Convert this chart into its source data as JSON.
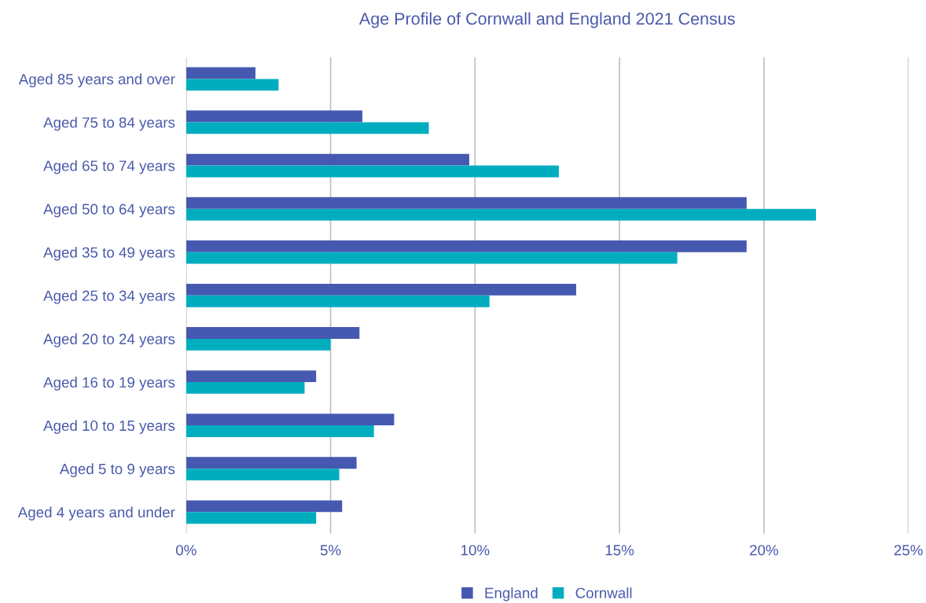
{
  "chart_data": {
    "type": "bar",
    "orientation": "horizontal",
    "title": "Age Profile of Cornwall and England 2021 Census",
    "categories": [
      "Aged 85 years and over",
      "Aged 75 to 84 years",
      "Aged 65 to 74 years",
      "Aged 50 to 64 years",
      "Aged 35 to 49 years",
      "Aged 25 to 34 years",
      "Aged 20 to 24 years",
      "Aged 16 to 19 years",
      "Aged 10 to 15 years",
      "Aged 5 to 9 years",
      "Aged 4 years and under"
    ],
    "series": [
      {
        "name": "England",
        "color": "#4659b0",
        "values": [
          2.4,
          6.1,
          9.8,
          19.4,
          19.4,
          13.5,
          6.0,
          4.5,
          7.2,
          5.9,
          5.4
        ]
      },
      {
        "name": "Cornwall",
        "color": "#00adbf",
        "values": [
          3.2,
          8.4,
          12.9,
          21.8,
          17.0,
          10.5,
          5.0,
          4.1,
          6.5,
          5.3,
          4.5
        ]
      }
    ],
    "xlim": [
      0,
      25
    ],
    "xticks": [
      {
        "value": 0,
        "label": "0%"
      },
      {
        "value": 5,
        "label": "5%"
      },
      {
        "value": 10,
        "label": "10%"
      },
      {
        "value": 15,
        "label": "15%"
      },
      {
        "value": 20,
        "label": "20%"
      },
      {
        "value": 25,
        "label": "25%"
      }
    ],
    "grid": "x",
    "legend": "bottom"
  }
}
